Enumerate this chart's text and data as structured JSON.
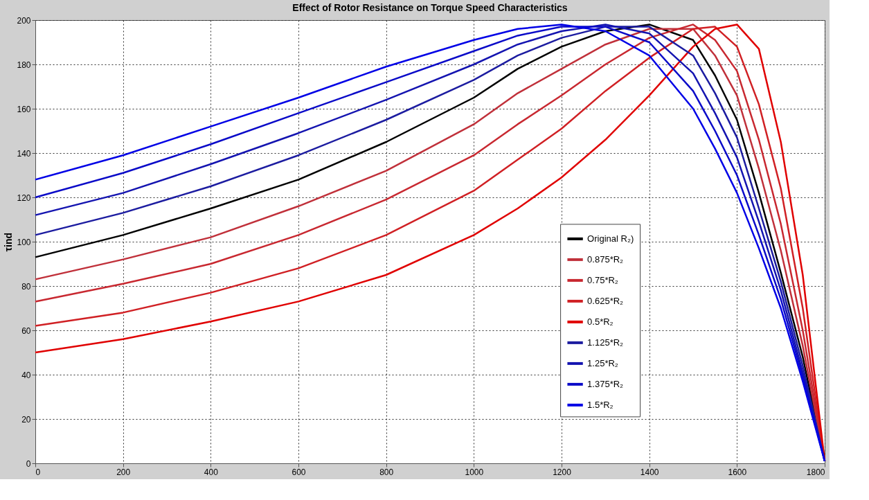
{
  "chart_data": {
    "type": "line",
    "title": "Effect of Rotor Resistance on Torque Speed Characteristics",
    "ylabel": "τind",
    "x": [
      0,
      200,
      400,
      600,
      800,
      1000,
      1100,
      1200,
      1300,
      1400,
      1500,
      1550,
      1600,
      1650,
      1700,
      1750,
      1800
    ],
    "series": [
      {
        "name": "Original R₂)",
        "color": "#000000",
        "values": [
          93,
          103,
          115,
          128,
          145,
          165,
          178,
          188,
          195,
          198,
          191,
          175,
          155,
          122,
          86,
          48,
          1
        ]
      },
      {
        "name": "0.875*R₂",
        "color": "#c0303a",
        "values": [
          83,
          92,
          102,
          116,
          132,
          153,
          167,
          178,
          189,
          196,
          196,
          184,
          166,
          133,
          96,
          53,
          1
        ]
      },
      {
        "name": "0.75*R₂",
        "color": "#c82830",
        "values": [
          73,
          81,
          90,
          103,
          119,
          139,
          153,
          166,
          180,
          192,
          198,
          191,
          177,
          146,
          108,
          60,
          1
        ]
      },
      {
        "name": "0.625*R₂",
        "color": "#d02024",
        "values": [
          62,
          68,
          77,
          88,
          103,
          123,
          137,
          151,
          168,
          183,
          196,
          197,
          188,
          162,
          124,
          70,
          1
        ]
      },
      {
        "name": "0.5*R₂",
        "color": "#e00000",
        "values": [
          50,
          56,
          64,
          73,
          85,
          103,
          115,
          129,
          146,
          166,
          188,
          196,
          198,
          187,
          145,
          85,
          1
        ]
      },
      {
        "name": "1.125*R₂",
        "color": "#1c1ca0",
        "values": [
          103,
          113,
          125,
          139,
          155,
          173,
          184,
          192,
          197,
          197,
          184,
          167,
          147,
          115,
          82,
          44,
          1
        ]
      },
      {
        "name": "1.25*R₂",
        "color": "#1414b0",
        "values": [
          112,
          122,
          135,
          149,
          164,
          180,
          189,
          195,
          198,
          194,
          176,
          158,
          138,
          109,
          78,
          41,
          1
        ]
      },
      {
        "name": "1.375*R₂",
        "color": "#0a0ac8",
        "values": [
          120,
          131,
          144,
          158,
          172,
          186,
          193,
          197,
          197,
          190,
          168,
          150,
          130,
          103,
          74,
          39,
          1
        ]
      },
      {
        "name": "1.5*R₂",
        "color": "#0000e6",
        "values": [
          128,
          139,
          152,
          165,
          179,
          191,
          196,
          198,
          195,
          184,
          160,
          142,
          122,
          97,
          70,
          37,
          1
        ]
      }
    ],
    "xlim": [
      0,
      1800
    ],
    "xticks": [
      0,
      200,
      400,
      600,
      800,
      1000,
      1200,
      1400,
      1600,
      1800
    ],
    "ylim": [
      0,
      200
    ],
    "yticks": [
      0,
      20,
      40,
      60,
      80,
      100,
      120,
      140,
      160,
      180,
      200
    ],
    "grid": true,
    "legend": "bottom right",
    "line_style": "solid",
    "marker": "none"
  }
}
